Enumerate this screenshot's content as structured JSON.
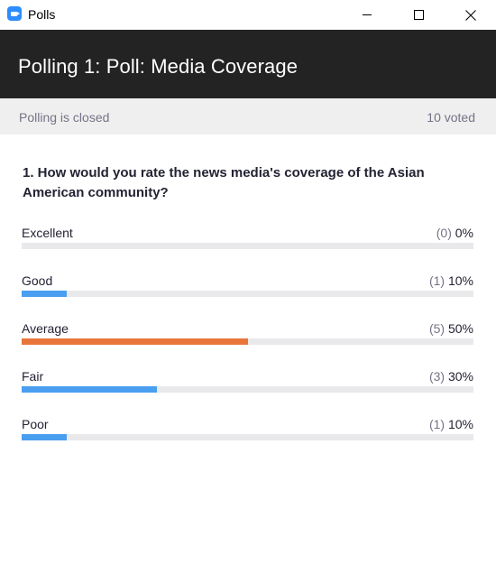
{
  "window": {
    "title": "Polls",
    "icon": "zoom-app-icon",
    "controls": [
      "minimize-icon",
      "maximize-icon",
      "close-icon"
    ]
  },
  "header": {
    "poll_title": "Polling 1: Poll: Media Coverage"
  },
  "status": {
    "state": "Polling is closed",
    "voted": "10 voted"
  },
  "question": {
    "text": "1. How would you rate the news media's coverage of the Asian American community?"
  },
  "colors": {
    "highlight": "#e8763a",
    "normal": "#4a9ef0",
    "track": "#e9e9ec"
  },
  "options": [
    {
      "label": "Excellent",
      "count": "(0)",
      "percent": "0%",
      "value": 0,
      "leading": false
    },
    {
      "label": "Good",
      "count": "(1)",
      "percent": "10%",
      "value": 10,
      "leading": false
    },
    {
      "label": "Average",
      "count": "(5)",
      "percent": "50%",
      "value": 50,
      "leading": true
    },
    {
      "label": "Fair",
      "count": "(3)",
      "percent": "30%",
      "value": 30,
      "leading": false
    },
    {
      "label": "Poor",
      "count": "(1)",
      "percent": "10%",
      "value": 10,
      "leading": false
    }
  ]
}
